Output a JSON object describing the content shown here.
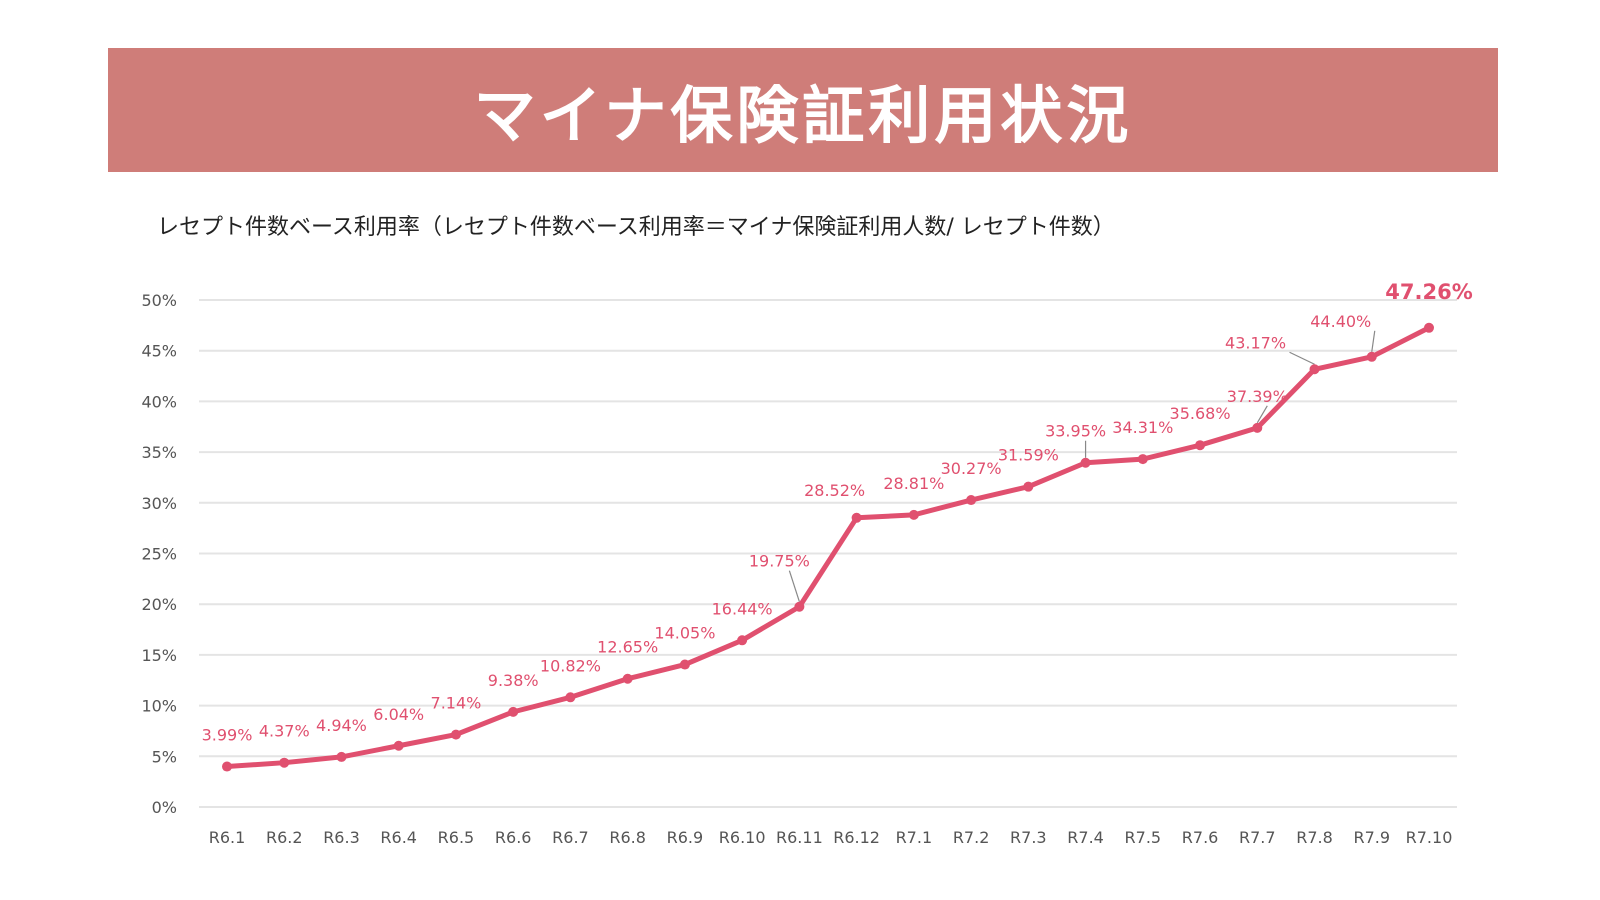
{
  "banner": {
    "title": "マイナ保険証利用状況",
    "background_color": "#cf7d79"
  },
  "subtitle": "レセプト件数ベース利用率（レセプト件数ベース利用率＝マイナ保険証利用人数/ レセプト件数）",
  "chart_data": {
    "type": "line",
    "title": "マイナ保険証利用状況",
    "subtitle": "レセプト件数ベース利用率（レセプト件数ベース利用率＝マイナ保険証利用人数/ レセプト件数）",
    "xlabel": "",
    "ylabel": "",
    "categories": [
      "R6.1",
      "R6.2",
      "R6.3",
      "R6.4",
      "R6.5",
      "R6.6",
      "R6.7",
      "R6.8",
      "R6.9",
      "R6.10",
      "R6.11",
      "R6.12",
      "R7.1",
      "R7.2",
      "R7.3",
      "R7.4",
      "R7.5",
      "R7.6",
      "R7.7",
      "R7.8",
      "R7.9",
      "R7.10"
    ],
    "series": [
      {
        "name": "レセプト件数ベース利用率",
        "values": [
          3.99,
          4.37,
          4.94,
          6.04,
          7.14,
          9.38,
          10.82,
          12.65,
          14.05,
          16.44,
          19.75,
          28.52,
          28.81,
          30.27,
          31.59,
          33.95,
          34.31,
          35.68,
          37.39,
          43.17,
          44.4,
          47.26
        ],
        "labels": [
          "3.99%",
          "4.37%",
          "4.94%",
          "6.04%",
          "7.14%",
          "9.38%",
          "10.82%",
          "12.65%",
          "14.05%",
          "16.44%",
          "19.75%",
          "28.52%",
          "28.81%",
          "30.27%",
          "31.59%",
          "33.95%",
          "34.31%",
          "35.68%",
          "37.39%",
          "43.17%",
          "44.40%",
          "47.26%"
        ],
        "color": "#e0506f"
      }
    ],
    "yticks": [
      0,
      5,
      10,
      15,
      20,
      25,
      30,
      35,
      40,
      45,
      50
    ],
    "ytick_labels": [
      "0%",
      "5%",
      "10%",
      "15%",
      "20%",
      "25%",
      "30%",
      "35%",
      "40%",
      "45%",
      "50%"
    ],
    "ylim": [
      0,
      50
    ],
    "grid": true,
    "legend": "none",
    "label_color": "#e0506f",
    "grid_color": "#e4e4e4",
    "leader_color": "#888888"
  }
}
